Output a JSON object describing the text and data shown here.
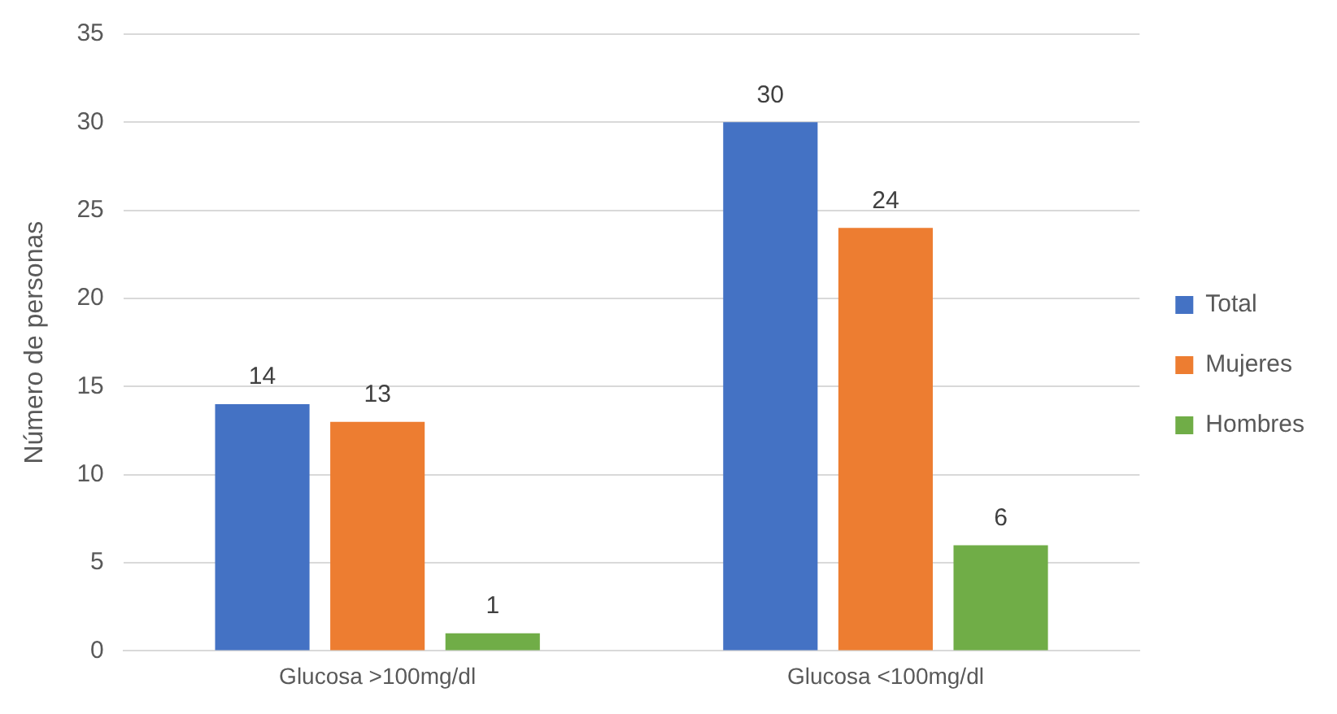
{
  "chart_data": {
    "type": "bar",
    "ylabel": "Número de personas",
    "categories": [
      "Glucosa >100mg/dl",
      "Glucosa <100mg/dl"
    ],
    "series": [
      {
        "name": "Total",
        "color": "#4472c4",
        "values": [
          14,
          30
        ]
      },
      {
        "name": "Mujeres",
        "color": "#ed7d31",
        "values": [
          13,
          24
        ]
      },
      {
        "name": "Hombres",
        "color": "#70ad47",
        "values": [
          1,
          6
        ]
      }
    ],
    "ylim": [
      0,
      35
    ],
    "yticks": [
      0,
      5,
      10,
      15,
      20,
      25,
      30,
      35
    ],
    "grid": "y",
    "legend": "right",
    "data_labels": true
  }
}
